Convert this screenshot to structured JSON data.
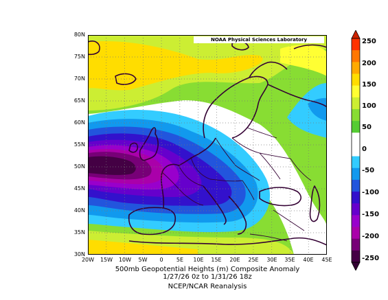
{
  "map": {
    "credit": "NOAA Physical Sciences Laboratory",
    "lat_labels": [
      "80N",
      "75N",
      "70N",
      "65N",
      "60N",
      "55N",
      "50N",
      "45N",
      "40N",
      "35N",
      "30N"
    ],
    "lon_labels": [
      "20W",
      "15W",
      "10W",
      "5W",
      "0",
      "5E",
      "10E",
      "15E",
      "20E",
      "25E",
      "30E",
      "35E",
      "40E",
      "45E"
    ],
    "extent": {
      "lon_min": -20,
      "lon_max": 45,
      "lat_min": 30,
      "lat_max": 80
    },
    "title_line1": "500mb Geopotential Heights (m)   Composite Anomaly",
    "title_line2": "1/27/26 0z  to 1/31/26 18z",
    "source": "NCEP/NCAR Reanalysis"
  },
  "colorbar": {
    "labels": [
      "250",
      "200",
      "150",
      "100",
      "50",
      "0",
      "-50",
      "-100",
      "-150",
      "-200",
      "-250"
    ],
    "colors": [
      "#ff3300",
      "#ff7700",
      "#ffaa00",
      "#ffdd00",
      "#ffff33",
      "#ccee33",
      "#88dd33",
      "#55cc33",
      "#ffffff",
      "#ffffff",
      "#33ccff",
      "#1199ee",
      "#2255dd",
      "#3311cc",
      "#6600cc",
      "#9900cc",
      "#aa00aa",
      "#770077",
      "#440044"
    ]
  }
}
